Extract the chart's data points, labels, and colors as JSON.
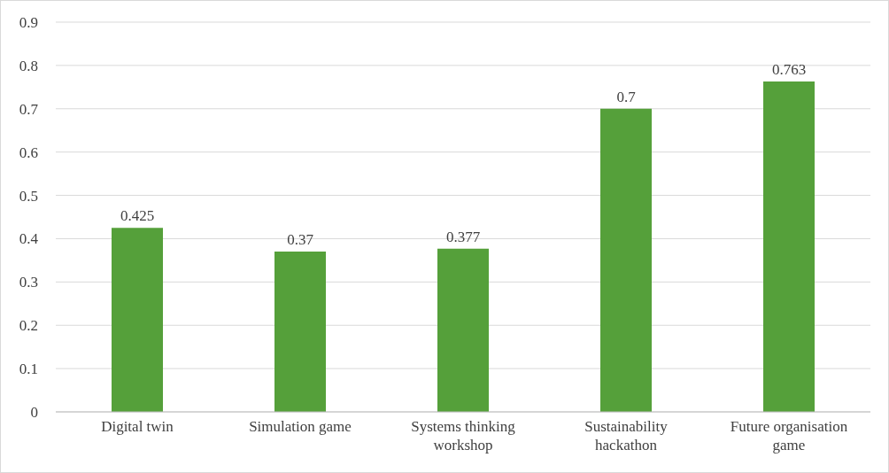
{
  "chart_data": {
    "type": "bar",
    "categories": [
      "Digital twin",
      "Simulation game",
      "Systems thinking workshop",
      "Sustainability hackathon",
      "Future organisation game"
    ],
    "values": [
      0.425,
      0.37,
      0.377,
      0.7,
      0.763
    ],
    "color": "#55a03a",
    "ylim": [
      0,
      0.9
    ],
    "yticks": [
      0,
      0.1,
      0.2,
      0.3,
      0.4,
      0.5,
      0.6,
      0.7,
      0.8,
      0.9
    ],
    "grid": "y",
    "data_labels": true
  }
}
